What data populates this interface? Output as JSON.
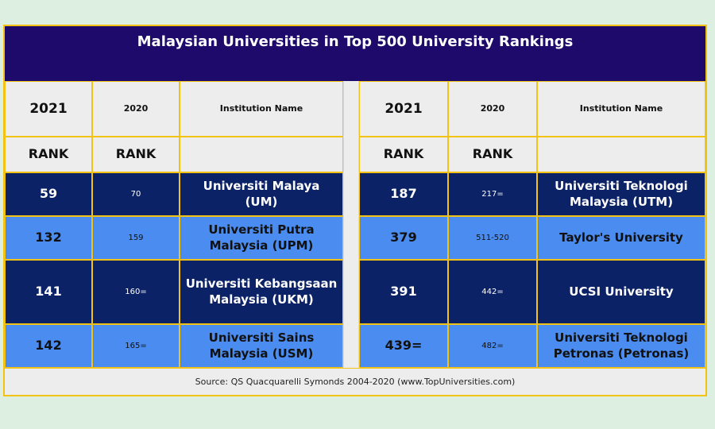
{
  "chart_data": {
    "type": "table",
    "title": "Malaysian Universities in Top 500 University Rankings",
    "columns": [
      "2021 RANK",
      "2020 RANK",
      "Institution Name"
    ],
    "header": {
      "year_2021": "2021",
      "year_2020": "2020",
      "institution": "Institution Name",
      "rank": "RANK"
    },
    "left": [
      {
        "rank_2021": "59",
        "rank_2020": "70",
        "name": "Universiti Malaya (UM)"
      },
      {
        "rank_2021": "132",
        "rank_2020": "159",
        "name": "Universiti Putra Malaysia (UPM)"
      },
      {
        "rank_2021": "141",
        "rank_2020": "160=",
        "name": "Universiti Kebangsaan Malaysia (UKM)"
      },
      {
        "rank_2021": "142",
        "rank_2020": "165=",
        "name": "Universiti Sains Malaysia (USM)"
      }
    ],
    "right": [
      {
        "rank_2021": "187",
        "rank_2020": "217=",
        "name": "Universiti Teknologi Malaysia (UTM)"
      },
      {
        "rank_2021": "379",
        "rank_2020": "511-520",
        "name": "Taylor's University"
      },
      {
        "rank_2021": "391",
        "rank_2020": "442=",
        "name": "UCSI University"
      },
      {
        "rank_2021": "439=",
        "rank_2020": "482=",
        "name": "Universiti Teknologi Petronas (Petronas)"
      }
    ],
    "source": "Source: QS Quacquarelli Symonds 2004-2020 (www.TopUniversities.com)"
  },
  "colors": {
    "title_bg": "#1d0a6b",
    "dark_row": "#0b2266",
    "light_row": "#4a8cf0",
    "border": "#f2c315"
  }
}
